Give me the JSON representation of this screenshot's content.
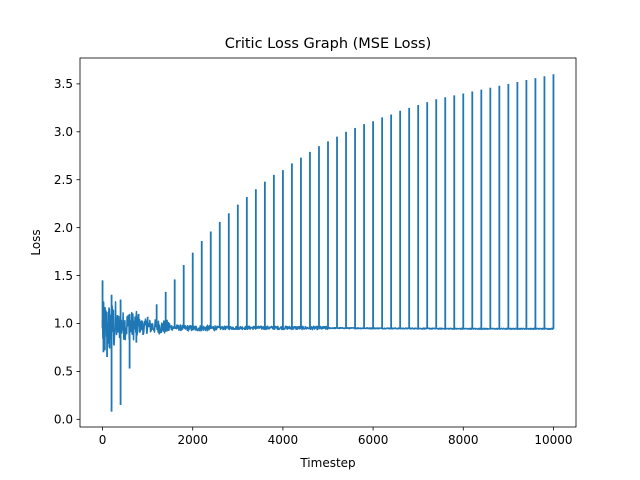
{
  "chart_data": {
    "type": "line",
    "title": "Critic Loss Graph (MSE Loss)",
    "xlabel": "Timestep",
    "ylabel": "Loss",
    "xlim": [
      -500,
      10500
    ],
    "ylim": [
      -0.08,
      3.77
    ],
    "xticks": [
      0,
      2000,
      4000,
      6000,
      8000,
      10000
    ],
    "xtick_labels": [
      "0",
      "2000",
      "4000",
      "6000",
      "8000",
      "10000"
    ],
    "yticks": [
      0.0,
      0.5,
      1.0,
      1.5,
      2.0,
      2.5,
      3.0,
      3.5
    ],
    "ytick_labels": [
      "0.0",
      "0.5",
      "1.0",
      "1.5",
      "2.0",
      "2.5",
      "3.0",
      "3.5"
    ],
    "grid": false,
    "legend": "none",
    "series": [
      {
        "color": "#1f77b4",
        "baseline_x": [
          0,
          200,
          500,
          1000,
          2000,
          3000,
          4000,
          6000,
          8000,
          10000
        ],
        "baseline_y": [
          0.95,
          0.96,
          0.98,
          0.97,
          0.95,
          0.955,
          0.955,
          0.95,
          0.945,
          0.945
        ],
        "spikes_x": [
          0,
          200,
          400,
          600,
          800,
          1000,
          1200,
          1400,
          1600,
          1800,
          2000,
          2200,
          2400,
          2600,
          2800,
          3000,
          3200,
          3400,
          3600,
          3800,
          4000,
          4200,
          4400,
          4600,
          4800,
          5000,
          5200,
          5400,
          5600,
          5800,
          6000,
          6200,
          6400,
          6600,
          6800,
          7000,
          7200,
          7400,
          7600,
          7800,
          8000,
          8200,
          8400,
          8600,
          8800,
          9000,
          9200,
          9400,
          9600,
          9800,
          10000
        ],
        "spikes_y": [
          1.45,
          1.3,
          1.25,
          1.1,
          1.1,
          1.07,
          1.2,
          1.33,
          1.46,
          1.61,
          1.74,
          1.86,
          1.96,
          2.06,
          2.15,
          2.24,
          2.32,
          2.4,
          2.48,
          2.55,
          2.6,
          2.67,
          2.73,
          2.79,
          2.85,
          2.9,
          2.95,
          3.0,
          3.04,
          3.08,
          3.11,
          3.15,
          3.18,
          3.22,
          3.25,
          3.28,
          3.31,
          3.34,
          3.36,
          3.38,
          3.4,
          3.42,
          3.44,
          3.46,
          3.48,
          3.5,
          3.52,
          3.54,
          3.56,
          3.58,
          3.6
        ],
        "dips_x": [
          20,
          50,
          100,
          150,
          200,
          400,
          600,
          750,
          900
        ],
        "dips_y": [
          0.7,
          0.72,
          0.65,
          0.75,
          0.08,
          0.15,
          0.53,
          0.8,
          0.88
        ]
      }
    ]
  }
}
